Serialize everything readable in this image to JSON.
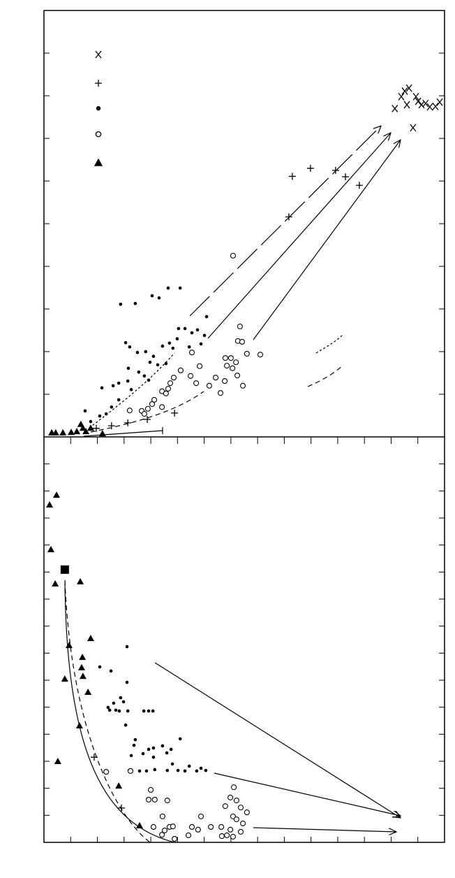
{
  "chart_data": [
    {
      "type": "scatter",
      "xlim": [
        0,
        15
      ],
      "ylim": [
        0,
        10
      ],
      "xticks": [],
      "yticks": [
        1,
        2,
        3,
        4,
        5,
        6,
        7,
        8,
        9
      ],
      "series": [
        {
          "marker": "x",
          "color": "#000000",
          "x": [
            13.14,
            13.38,
            13.51,
            13.67,
            13.59,
            13.82,
            13.93,
            14.01,
            14.14,
            14.29,
            14.45,
            14.66,
            14.82
          ],
          "values": [
            7.7,
            7.98,
            8.11,
            8.18,
            7.79,
            7.25,
            7.98,
            7.87,
            7.79,
            7.82,
            7.74,
            7.75,
            7.85
          ]
        },
        {
          "marker": "plus",
          "color": "#000000",
          "x": [
            9.3,
            9.98,
            10.92,
            11.29,
            11.81,
            9.17,
            4.89,
            3.87,
            3.14,
            2.53,
            1.96
          ],
          "values": [
            6.11,
            6.3,
            6.25,
            6.1,
            5.9,
            5.16,
            0.56,
            0.41,
            0.33,
            0.26,
            0.2
          ]
        },
        {
          "marker": "dot",
          "color": "#000000",
          "x": [
            2.87,
            3.42,
            4.05,
            4.31,
            4.65,
            5.1,
            3.06,
            3.21,
            3.5,
            3.81,
            4.1,
            3.97,
            4.26,
            4.44,
            4.7,
            4.83,
            5.04,
            5.28,
            5.54,
            5.75,
            6.01,
            6.09,
            5.88,
            5.44,
            4.99,
            3.16,
            3.55,
            3.76,
            3.14,
            2.8,
            2.59,
            2.17,
            2.8,
            2.53,
            2.33,
            2.09,
            1.54,
            1.75,
            4.57,
            3.92,
            3.27
          ],
          "values": [
            3.11,
            3.13,
            3.31,
            3.26,
            3.49,
            3.49,
            2.21,
            2.11,
            1.98,
            2.0,
            1.89,
            1.75,
            1.69,
            2.13,
            2.2,
            2.08,
            2.54,
            2.54,
            2.44,
            2.51,
            2.38,
            2.82,
            2.18,
            2.11,
            2.3,
            1.61,
            1.52,
            1.43,
            1.31,
            1.26,
            1.2,
            1.15,
            0.87,
            0.7,
            0.54,
            0.49,
            0.61,
            0.36,
            1.72,
            1.33,
            1.11
          ]
        },
        {
          "marker": "circle",
          "color": "#000000",
          "x": [
            7.08,
            7.34,
            7.26,
            7.42,
            7.6,
            8.1,
            6.79,
            7.0,
            7.19,
            6.85,
            7.06,
            7.24,
            7.45,
            6.77,
            6.43,
            6.19,
            6.61,
            5.54,
            5.83,
            5.49,
            5.7,
            5.12,
            4.86,
            4.73,
            4.65,
            4.42,
            4.57,
            4.13,
            4.42,
            4.05,
            3.89,
            3.66,
            3.21,
            3.76
          ],
          "values": [
            4.25,
            2.59,
            2.25,
            2.23,
            1.95,
            1.93,
            1.85,
            1.85,
            1.75,
            1.67,
            1.61,
            1.44,
            1.2,
            1.31,
            1.39,
            1.2,
            1.03,
            1.98,
            1.66,
            1.43,
            1.26,
            1.56,
            1.39,
            1.26,
            1.13,
            1.07,
            1.02,
            0.87,
            0.7,
            0.77,
            0.66,
            0.61,
            0.62,
            0.54
          ]
        },
        {
          "marker": "triangle",
          "color": "#000000",
          "x": [
            0.29,
            0.44,
            0.71,
            1.02,
            1.23,
            1.38,
            1.46,
            1.57,
            1.75,
            2.19
          ],
          "values": [
            0.1,
            0.1,
            0.1,
            0.11,
            0.13,
            0.3,
            0.21,
            0.13,
            0.21,
            0.08
          ]
        }
      ]
    },
    {
      "type": "scatter",
      "xlim": [
        0,
        15
      ],
      "ylim": [
        0,
        15
      ],
      "xticks": [
        1,
        2,
        3,
        4,
        5,
        6,
        7,
        8,
        9,
        10,
        11,
        12,
        13,
        14
      ],
      "yticks": [
        1,
        2,
        3,
        4,
        5,
        6,
        7,
        8,
        9,
        10,
        11,
        12,
        13,
        14
      ],
      "series": [
        {
          "marker": "triangle",
          "color": "#000000",
          "x": [
            0.21,
            0.47,
            0.26,
            0.42,
            1.36,
            0.94,
            1.75,
            1.44,
            1.41,
            1.46,
            0.78,
            1.65,
            1.33,
            0.52,
            2.8,
            3.58
          ],
          "values": [
            12.49,
            12.85,
            10.84,
            9.57,
            9.65,
            7.29,
            7.55,
            6.85,
            6.47,
            6.15,
            6.05,
            5.56,
            4.32,
            3.0,
            2.09,
            0.62
          ]
        },
        {
          "marker": "square",
          "color": "#000000",
          "x": [
            0.78
          ],
          "values": [
            10.09
          ]
        },
        {
          "marker": "plus",
          "color": "#000000",
          "x": [
            1.88,
            2.9
          ],
          "values": [
            3.15,
            1.27
          ]
        },
        {
          "marker": "dot",
          "color": "#000000",
          "x": [
            3.11,
            2.09,
            2.51,
            3.11,
            2.87,
            2.98,
            2.61,
            2.4,
            2.46,
            2.69,
            2.82,
            3.14,
            3.74,
            3.92,
            4.08,
            3.06,
            3.42,
            3.37,
            5.1,
            4.44,
            4.1,
            3.92,
            4.76,
            4.6,
            3.71,
            3.27,
            3.19,
            3.58,
            3.84,
            4.15,
            4.62,
            5.02,
            5.28,
            5.72,
            6.06,
            4.1,
            4.81,
            5.44,
            5.88
          ],
          "values": [
            7.24,
            6.49,
            6.34,
            5.92,
            5.35,
            5.2,
            5.15,
            4.99,
            4.89,
            4.89,
            4.86,
            4.86,
            4.86,
            4.86,
            4.86,
            4.34,
            3.8,
            3.59,
            3.83,
            3.57,
            3.49,
            3.44,
            3.44,
            3.31,
            3.28,
            3.21,
            2.66,
            2.64,
            2.64,
            2.69,
            2.66,
            2.66,
            2.64,
            2.64,
            2.66,
            3.15,
            2.9,
            2.82,
            2.74
          ]
        },
        {
          "marker": "circle",
          "color": "#000000",
          "x": [
            2.33,
            3.24,
            4.0,
            3.92,
            4.15,
            4.62,
            4.44,
            4.1,
            4.52,
            4.7,
            4.83,
            4.42,
            4.89,
            5.41,
            5.54,
            5.77,
            5.88,
            6.25,
            6.64,
            7.11,
            6.98,
            7.21,
            7.37,
            7.6,
            6.79,
            7.08,
            7.21,
            7.45,
            6.98,
            7.37,
            6.85,
            7.08,
            6.66
          ],
          "values": [
            2.61,
            2.64,
            1.94,
            1.58,
            1.58,
            1.55,
            0.96,
            0.57,
            0.44,
            0.57,
            0.59,
            0.28,
            0.13,
            0.26,
            0.57,
            0.47,
            0.96,
            0.57,
            0.57,
            2.04,
            1.66,
            1.55,
            1.29,
            1.11,
            1.34,
            0.96,
            0.85,
            0.7,
            0.47,
            0.39,
            0.26,
            0.21,
            0.23
          ]
        }
      ]
    }
  ]
}
